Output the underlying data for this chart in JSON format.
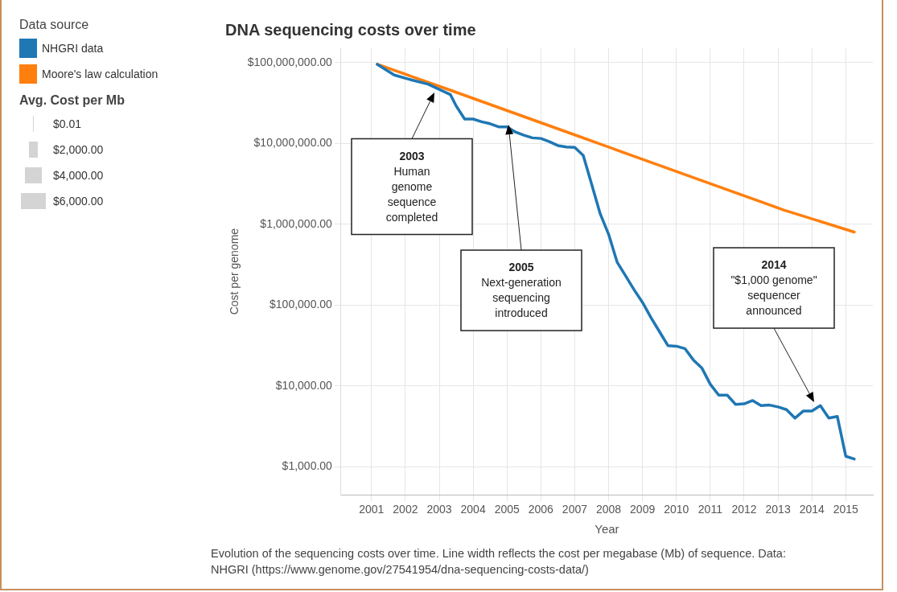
{
  "chart_data": {
    "type": "line",
    "title": "DNA sequencing costs over time",
    "xlabel": "Year",
    "ylabel": "Cost per genome",
    "legend_title": "Data source",
    "legend": "top left",
    "grid": true,
    "log": "y",
    "xlim": [
      2000.1,
      2015.8
    ],
    "xticks": [
      2001,
      2002,
      2003,
      2004,
      2005,
      2006,
      2007,
      2008,
      2009,
      2010,
      2011,
      2012,
      2013,
      2014,
      2015
    ],
    "ylim": [
      450,
      150000000
    ],
    "yticks": [
      {
        "value": 1000,
        "label": "$1,000.00"
      },
      {
        "value": 10000,
        "label": "$10,000.00"
      },
      {
        "value": 100000,
        "label": "$100,000.00"
      },
      {
        "value": 1000000,
        "label": "$1,000,000.00"
      },
      {
        "value": 10000000,
        "label": "$10,000,000.00"
      },
      {
        "value": 100000000,
        "label": "$100,000,000.00"
      }
    ],
    "series": [
      {
        "name": "NHGRI data",
        "color": "#1f77b4",
        "x": [
          2001.17,
          2001.67,
          2002.17,
          2002.67,
          2003.33,
          2003.5,
          2003.75,
          2004.0,
          2004.25,
          2004.5,
          2004.75,
          2005.0,
          2005.25,
          2005.5,
          2005.75,
          2006.0,
          2006.25,
          2006.5,
          2006.75,
          2007.0,
          2007.25,
          2007.5,
          2007.75,
          2008.0,
          2008.25,
          2008.5,
          2008.75,
          2009.0,
          2009.25,
          2009.5,
          2009.75,
          2010.0,
          2010.25,
          2010.5,
          2010.75,
          2011.0,
          2011.25,
          2011.5,
          2011.75,
          2012.0,
          2012.25,
          2012.5,
          2012.75,
          2013.0,
          2013.25,
          2013.5,
          2013.75,
          2014.0,
          2014.25,
          2014.5,
          2014.75,
          2015.0,
          2015.25
        ],
        "values": [
          95000000,
          70000000,
          61000000,
          54000000,
          40000000,
          29000000,
          20000000,
          20000000,
          18500000,
          17500000,
          16000000,
          16000000,
          13800000,
          12600000,
          11700000,
          11500000,
          10500000,
          9400000,
          9000000,
          8900000,
          7100000,
          3100000,
          1350000,
          750000,
          340000,
          230000,
          155000,
          108000,
          70000,
          47000,
          31500,
          31000,
          29000,
          21000,
          16700,
          10500,
          7700,
          7700,
          5900,
          6000,
          6600,
          5700,
          5800,
          5500,
          5100,
          4000,
          4900,
          4900,
          5700,
          4000,
          4200,
          1350,
          1250
        ]
      },
      {
        "name": "Moore's law calculation",
        "color": "#ff7f0e",
        "x": [
          2001.17,
          2003.17,
          2005.17,
          2007.17,
          2009.17,
          2011.17,
          2013.17,
          2015.25
        ],
        "values": [
          95000000,
          48000000,
          24000000,
          12000000,
          6000000,
          3000000,
          1500000,
          800000
        ]
      }
    ],
    "annotations": [
      "Avg. Cost per Mb",
      "$0.01",
      "$2,000.00",
      "$4,000.00",
      "$6,000.00",
      "2003\nHuman\ngenome\nsequence\ncompleted",
      "2005\nNext-generation\nsequencing\nintroduced",
      "2014\n\"$1,000 genome\"\nsequencer\nannounced",
      "Evolution of the sequencing costs over time. Line width reflects the cost per megabase (Mb) of sequence. Data: NHGRI (https://www.genome.gov/27541954/dna-sequencing-costs-data/)"
    ]
  }
}
